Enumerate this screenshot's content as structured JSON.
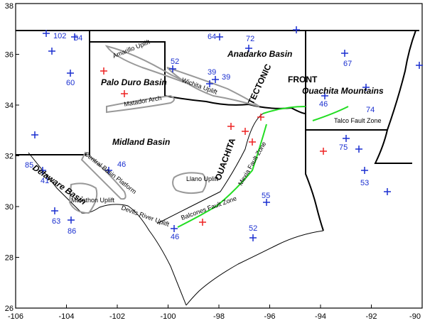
{
  "map": {
    "x_axis": {
      "ticks": [
        -106,
        -104,
        -102,
        -100,
        -98,
        -96,
        -94,
        -92,
        -90
      ]
    },
    "y_axis": {
      "ticks": [
        26,
        28,
        30,
        32,
        34,
        36,
        38
      ]
    },
    "region_labels": [
      "Amarillo Uplift",
      "Palo Duro Basin",
      "Matador Arch",
      "Anadarko Basin",
      "Wichita Uplift",
      "TECTONIC",
      "FRONT",
      "Ouachita Mountains",
      "Talco Fault Zone",
      "Midland Basin",
      "OUACHITA",
      "Mexia Fault Zone",
      "Central Basin Platform",
      "Delaware Basin",
      "Llano Uplift",
      "Marathon Uplift",
      "Devils River Uplift",
      "Balcones Fault Zone"
    ],
    "station_counts": [
      102,
      54,
      60,
      85,
      41,
      63,
      86,
      46,
      52,
      64,
      72,
      39,
      39,
      67,
      46,
      74,
      75,
      53,
      55,
      52,
      46
    ]
  }
}
